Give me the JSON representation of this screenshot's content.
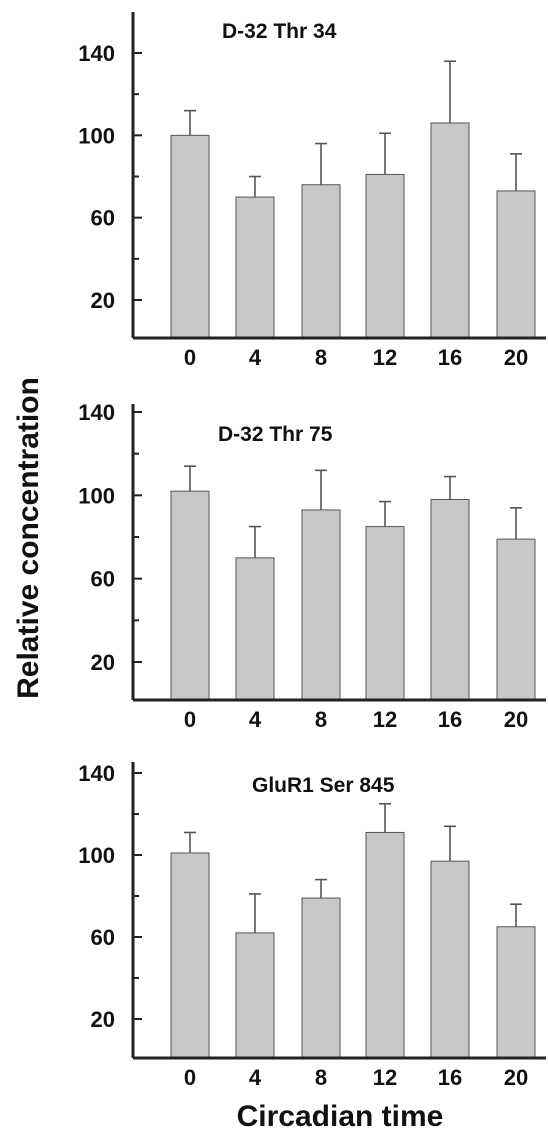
{
  "ylabel": "Relative concentration",
  "xlabel": "Circadian time",
  "colors": {
    "bar": "#c8c8c8",
    "bar_stroke": "#555555",
    "axis": "#222222",
    "text": "#111111"
  },
  "chart_data": [
    {
      "type": "bar",
      "title": "D-32 Thr 34",
      "categories": [
        "0",
        "4",
        "8",
        "12",
        "16",
        "20"
      ],
      "values": [
        100,
        70,
        76,
        81,
        106,
        73
      ],
      "error_upper": [
        112,
        80,
        96,
        101,
        136,
        91
      ],
      "ylim": [
        0,
        160
      ],
      "yticks": [
        20,
        60,
        100,
        140
      ],
      "grid": false
    },
    {
      "type": "bar",
      "title": "D-32 Thr 75",
      "categories": [
        "0",
        "4",
        "8",
        "12",
        "16",
        "20"
      ],
      "values": [
        102,
        70,
        93,
        85,
        98,
        79
      ],
      "error_upper": [
        114,
        85,
        112,
        97,
        109,
        94
      ],
      "ylim": [
        0,
        140
      ],
      "yticks": [
        20,
        60,
        100,
        140
      ],
      "grid": false
    },
    {
      "type": "bar",
      "title": "GluR1 Ser 845",
      "categories": [
        "0",
        "4",
        "8",
        "12",
        "16",
        "20"
      ],
      "values": [
        101,
        62,
        79,
        111,
        97,
        65
      ],
      "error_upper": [
        111,
        81,
        88,
        125,
        114,
        76
      ],
      "ylim": [
        0,
        140
      ],
      "yticks": [
        20,
        60,
        100,
        140
      ],
      "grid": false
    }
  ]
}
